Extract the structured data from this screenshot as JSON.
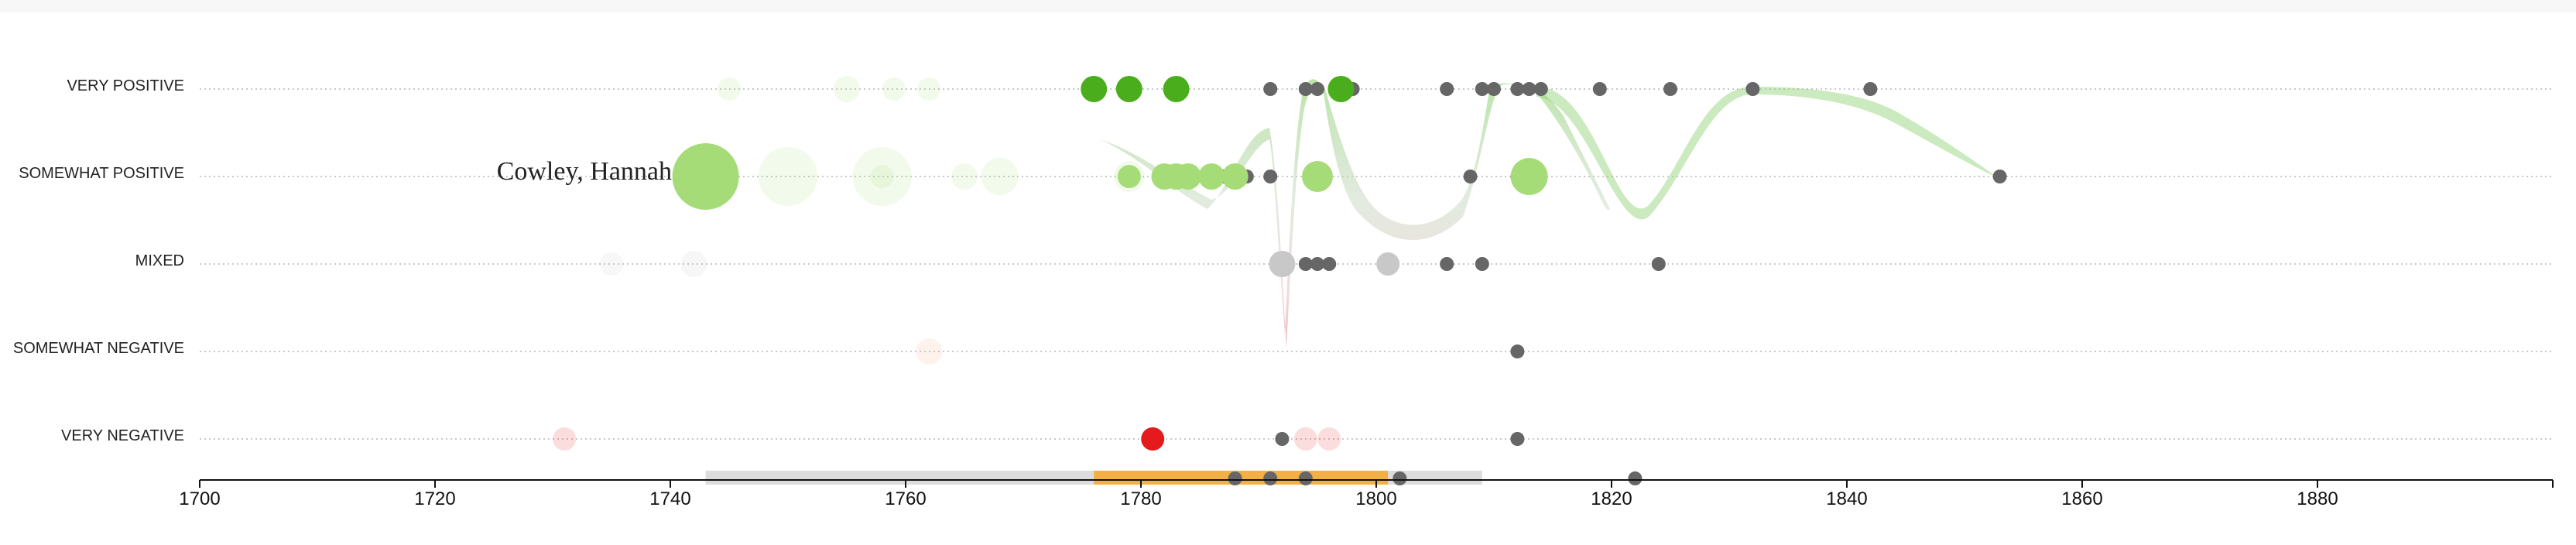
{
  "chart_data": {
    "type": "scatter",
    "title": "",
    "xlabel": "",
    "ylabel": "",
    "categories": [
      "VERY POSITIVE",
      "SOMEWHAT POSITIVE",
      "MIXED",
      "SOMEWHAT NEGATIVE",
      "VERY NEGATIVE"
    ],
    "xlim": [
      1700,
      1900
    ],
    "x_ticks": [
      1700,
      1720,
      1740,
      1760,
      1780,
      1800,
      1820,
      1840,
      1860,
      1880
    ],
    "grid": "horizontal dotted lines per category",
    "highlight_label": "Cowley, Hannah",
    "colors": {
      "very_positive": "#4aae1c",
      "somewhat_positive": "#a6dc78",
      "mixed": "#c8c8c8",
      "very_negative": "#e41a1c",
      "other_reception": "#666666",
      "lifespan_bar": "#dddddd",
      "career_bar": "#f4b042",
      "flow_positive": "#8fd172",
      "flow_negative": "#e29aa0"
    },
    "lifespan": [
      1743,
      1809
    ],
    "career": [
      1776,
      1801
    ],
    "timeline_works": [
      1788,
      1791,
      1794,
      1802,
      1822
    ],
    "reviews": [
      {
        "year": 1776,
        "cat": "VERY POSITIVE",
        "size": 3
      },
      {
        "year": 1779,
        "cat": "VERY POSITIVE",
        "size": 3
      },
      {
        "year": 1783,
        "cat": "VERY POSITIVE",
        "size": 3
      },
      {
        "year": 1797,
        "cat": "VERY POSITIVE",
        "size": 3
      },
      {
        "year": 1786,
        "cat": "SOMEWHAT POSITIVE",
        "size": 3
      },
      {
        "year": 1795,
        "cat": "SOMEWHAT POSITIVE",
        "size": 4
      },
      {
        "year": 1813,
        "cat": "SOMEWHAT POSITIVE",
        "size": 5
      },
      {
        "year": 1743,
        "cat": "SOMEWHAT POSITIVE",
        "size": 7
      },
      {
        "year": 1779,
        "cat": "SOMEWHAT POSITIVE",
        "size": 2
      },
      {
        "year": 1782,
        "cat": "SOMEWHAT POSITIVE",
        "size": 3
      },
      {
        "year": 1784,
        "cat": "SOMEWHAT POSITIVE",
        "size": 3
      },
      {
        "year": 1788,
        "cat": "SOMEWHAT POSITIVE",
        "size": 3
      },
      {
        "year": 1783,
        "cat": "SOMEWHAT POSITIVE",
        "size": 3
      },
      {
        "year": 1792,
        "cat": "MIXED",
        "size": 3
      },
      {
        "year": 1801,
        "cat": "MIXED",
        "size": 2
      },
      {
        "year": 1781,
        "cat": "VERY NEGATIVE",
        "size": 2
      }
    ],
    "other_reviews": [
      {
        "year": 1791,
        "cat": "VERY POSITIVE"
      },
      {
        "year": 1794,
        "cat": "VERY POSITIVE"
      },
      {
        "year": 1795,
        "cat": "VERY POSITIVE"
      },
      {
        "year": 1798,
        "cat": "VERY POSITIVE"
      },
      {
        "year": 1806,
        "cat": "VERY POSITIVE"
      },
      {
        "year": 1809,
        "cat": "VERY POSITIVE"
      },
      {
        "year": 1810,
        "cat": "VERY POSITIVE"
      },
      {
        "year": 1812,
        "cat": "VERY POSITIVE"
      },
      {
        "year": 1813,
        "cat": "VERY POSITIVE"
      },
      {
        "year": 1814,
        "cat": "VERY POSITIVE"
      },
      {
        "year": 1819,
        "cat": "VERY POSITIVE"
      },
      {
        "year": 1825,
        "cat": "VERY POSITIVE"
      },
      {
        "year": 1832,
        "cat": "VERY POSITIVE"
      },
      {
        "year": 1842,
        "cat": "VERY POSITIVE"
      },
      {
        "year": 1787,
        "cat": "SOMEWHAT POSITIVE"
      },
      {
        "year": 1789,
        "cat": "SOMEWHAT POSITIVE"
      },
      {
        "year": 1791,
        "cat": "SOMEWHAT POSITIVE"
      },
      {
        "year": 1808,
        "cat": "SOMEWHAT POSITIVE"
      },
      {
        "year": 1812,
        "cat": "SOMEWHAT POSITIVE"
      },
      {
        "year": 1853,
        "cat": "SOMEWHAT POSITIVE"
      },
      {
        "year": 1794,
        "cat": "MIXED"
      },
      {
        "year": 1795,
        "cat": "MIXED"
      },
      {
        "year": 1796,
        "cat": "MIXED"
      },
      {
        "year": 1806,
        "cat": "MIXED"
      },
      {
        "year": 1809,
        "cat": "MIXED"
      },
      {
        "year": 1824,
        "cat": "MIXED"
      },
      {
        "year": 1812,
        "cat": "SOMEWHAT NEGATIVE"
      },
      {
        "year": 1792,
        "cat": "VERY NEGATIVE"
      },
      {
        "year": 1812,
        "cat": "VERY NEGATIVE"
      }
    ],
    "faded_reviews": [
      {
        "year": 1745,
        "cat": "VERY POSITIVE",
        "size": 2,
        "color": "#a6dc78"
      },
      {
        "year": 1755,
        "cat": "VERY POSITIVE",
        "size": 3,
        "color": "#a6dc78"
      },
      {
        "year": 1759,
        "cat": "VERY POSITIVE",
        "size": 2,
        "color": "#a6dc78"
      },
      {
        "year": 1762,
        "cat": "VERY POSITIVE",
        "size": 2,
        "color": "#a6dc78"
      },
      {
        "year": 1750,
        "cat": "SOMEWHAT POSITIVE",
        "size": 6,
        "color": "#a6dc78"
      },
      {
        "year": 1758,
        "cat": "SOMEWHAT POSITIVE",
        "size": 6,
        "color": "#a6dc78"
      },
      {
        "year": 1768,
        "cat": "SOMEWHAT POSITIVE",
        "size": 5,
        "color": "#a6dc78"
      },
      {
        "year": 1758,
        "cat": "SOMEWHAT POSITIVE",
        "size": 2,
        "color": "#a6dc78"
      },
      {
        "year": 1765,
        "cat": "SOMEWHAT POSITIVE",
        "size": 3,
        "color": "#a6dc78"
      },
      {
        "year": 1779,
        "cat": "SOMEWHAT POSITIVE",
        "size": 4,
        "color": "#a6dc78"
      },
      {
        "year": 1742,
        "cat": "MIXED",
        "size": 3,
        "color": "#c8c8c8"
      },
      {
        "year": 1735,
        "cat": "MIXED",
        "size": 2,
        "color": "#c8c8c8"
      },
      {
        "year": 1762,
        "cat": "SOMEWHAT NEGATIVE",
        "size": 3,
        "color": "#f6a586"
      },
      {
        "year": 1731,
        "cat": "VERY NEGATIVE",
        "size": 2,
        "color": "#e41a1c"
      },
      {
        "year": 1794,
        "cat": "VERY NEGATIVE",
        "size": 2,
        "color": "#e41a1c"
      },
      {
        "year": 1796,
        "cat": "VERY NEGATIVE",
        "size": 2,
        "color": "#e41a1c"
      }
    ]
  }
}
